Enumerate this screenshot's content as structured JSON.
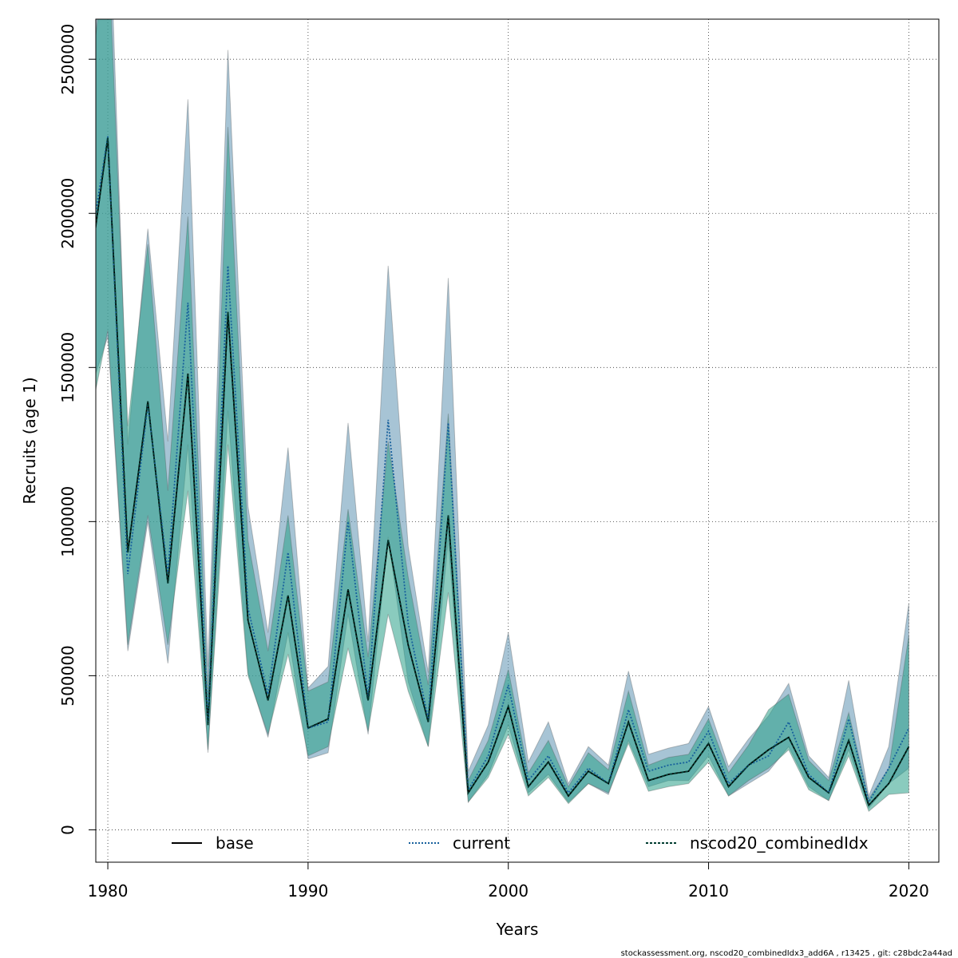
{
  "chart_data": {
    "type": "line",
    "xlabel": "Years",
    "ylabel": "Recruits (age 1)",
    "xlim": [
      1979.4,
      2021.5
    ],
    "ylim": [
      -105000,
      2630000
    ],
    "x_ticks": [
      1980,
      1990,
      2000,
      2010,
      2020
    ],
    "x_tick_labels": [
      "1980",
      "1990",
      "2000",
      "2010",
      "2020"
    ],
    "y_ticks": [
      0,
      500000,
      1000000,
      1500000,
      2000000,
      2500000
    ],
    "y_tick_labels": [
      "0",
      "500000",
      "1000000",
      "1500000",
      "2000000",
      "2500000"
    ],
    "grid": true,
    "legend_position": "bottom",
    "x": [
      1979,
      1980,
      1981,
      1982,
      1983,
      1984,
      1985,
      1986,
      1987,
      1988,
      1989,
      1990,
      1991,
      1992,
      1993,
      1994,
      1995,
      1996,
      1997,
      1998,
      1999,
      2000,
      2001,
      2002,
      2003,
      2004,
      2005,
      2006,
      2007,
      2008,
      2009,
      2010,
      2011,
      2012,
      2013,
      2014,
      2015,
      2016,
      2017,
      2018,
      2019,
      2020
    ],
    "series": [
      {
        "name": "base",
        "line_style": "solid",
        "color": "#000000",
        "values": [
          1770000,
          2245000,
          900000,
          1390000,
          800000,
          1480000,
          340000,
          1680000,
          680000,
          420000,
          760000,
          330000,
          360000,
          780000,
          420000,
          940000,
          600000,
          350000,
          1020000,
          120000,
          220000,
          400000,
          140000,
          220000,
          110000,
          190000,
          150000,
          350000,
          160000,
          180000,
          190000,
          280000,
          140000,
          210000,
          260000,
          300000,
          170000,
          120000,
          290000,
          80000,
          150000,
          270000
        ],
        "band_lower": [
          1300000,
          1620000,
          600000,
          1020000,
          600000,
          1100000,
          260000,
          1250000,
          500000,
          310000,
          570000,
          240000,
          270000,
          590000,
          320000,
          700000,
          450000,
          270000,
          770000,
          90000,
          170000,
          310000,
          110000,
          170000,
          85000,
          150000,
          120000,
          280000,
          125000,
          140000,
          150000,
          220000,
          110000,
          160000,
          200000,
          260000,
          130000,
          95000,
          240000,
          60000,
          115000,
          120000
        ],
        "band_upper": [
          2350000,
          2920000,
          1310000,
          1900000,
          1100000,
          1990000,
          440000,
          2280000,
          940000,
          580000,
          1020000,
          450000,
          480000,
          1040000,
          560000,
          1260000,
          820000,
          470000,
          1350000,
          160000,
          290000,
          520000,
          185000,
          290000,
          140000,
          250000,
          195000,
          450000,
          210000,
          235000,
          245000,
          360000,
          185000,
          275000,
          390000,
          440000,
          225000,
          160000,
          380000,
          100000,
          200000,
          630000
        ],
        "band_color": "#2aa189"
      },
      {
        "name": "current",
        "line_style": "dotted",
        "color": "#17609c",
        "values": [
          1840000,
          2250000,
          830000,
          1380000,
          830000,
          1710000,
          350000,
          1830000,
          720000,
          440000,
          900000,
          330000,
          350000,
          1000000,
          430000,
          1330000,
          670000,
          360000,
          1320000,
          130000,
          240000,
          470000,
          160000,
          240000,
          120000,
          200000,
          150000,
          390000,
          190000,
          210000,
          220000,
          320000,
          150000,
          210000,
          240000,
          350000,
          180000,
          120000,
          360000,
          90000,
          200000,
          330000
        ],
        "band_lower": [
          1400000,
          1600000,
          580000,
          1000000,
          540000,
          1250000,
          250000,
          1360000,
          510000,
          300000,
          640000,
          230000,
          250000,
          700000,
          310000,
          950000,
          480000,
          270000,
          940000,
          90000,
          180000,
          340000,
          120000,
          180000,
          90000,
          150000,
          115000,
          290000,
          140000,
          160000,
          160000,
          240000,
          110000,
          150000,
          190000,
          270000,
          140000,
          95000,
          260000,
          70000,
          150000,
          200000
        ],
        "band_upper": [
          2470000,
          3150000,
          1250000,
          1950000,
          1260000,
          2370000,
          530000,
          2530000,
          1050000,
          640000,
          1240000,
          460000,
          530000,
          1320000,
          610000,
          1830000,
          920000,
          510000,
          1790000,
          190000,
          340000,
          640000,
          220000,
          350000,
          150000,
          270000,
          210000,
          515000,
          245000,
          265000,
          280000,
          400000,
          205000,
          295000,
          370000,
          475000,
          240000,
          170000,
          485000,
          110000,
          270000,
          735000
        ],
        "band_color": "#5f93b2"
      },
      {
        "name": "nscod20_combinedIdx",
        "line_style": "dashed",
        "color": "#003c30",
        "values": [
          1770000,
          2245000,
          900000,
          1390000,
          800000,
          1480000,
          340000,
          1680000,
          680000,
          420000,
          760000,
          330000,
          360000,
          780000,
          420000,
          940000,
          600000,
          350000,
          1020000,
          120000,
          220000,
          400000,
          140000,
          220000,
          110000,
          190000,
          150000,
          350000,
          160000,
          180000,
          190000,
          280000,
          140000,
          210000,
          260000,
          300000,
          170000,
          120000,
          290000,
          80000,
          150000,
          270000
        ],
        "band_lower": [
          1300000,
          1620000,
          600000,
          1020000,
          600000,
          1100000,
          260000,
          1250000,
          500000,
          310000,
          570000,
          240000,
          270000,
          590000,
          320000,
          700000,
          450000,
          270000,
          770000,
          90000,
          170000,
          310000,
          110000,
          170000,
          85000,
          150000,
          120000,
          280000,
          125000,
          140000,
          150000,
          220000,
          110000,
          160000,
          200000,
          260000,
          130000,
          95000,
          240000,
          60000,
          115000,
          120000
        ],
        "band_upper": [
          2350000,
          2920000,
          1310000,
          1900000,
          1100000,
          1990000,
          440000,
          2280000,
          940000,
          580000,
          1020000,
          450000,
          480000,
          1040000,
          560000,
          1260000,
          820000,
          470000,
          1350000,
          160000,
          290000,
          520000,
          185000,
          290000,
          140000,
          250000,
          195000,
          450000,
          210000,
          235000,
          245000,
          360000,
          185000,
          275000,
          390000,
          440000,
          225000,
          160000,
          380000,
          100000,
          200000,
          630000
        ],
        "band_color": "#2aa189"
      }
    ]
  },
  "footer": "stockassessment.org, nscod20_combinedIdx3_add6A , r13425 , git: c28bdc2a44ad"
}
